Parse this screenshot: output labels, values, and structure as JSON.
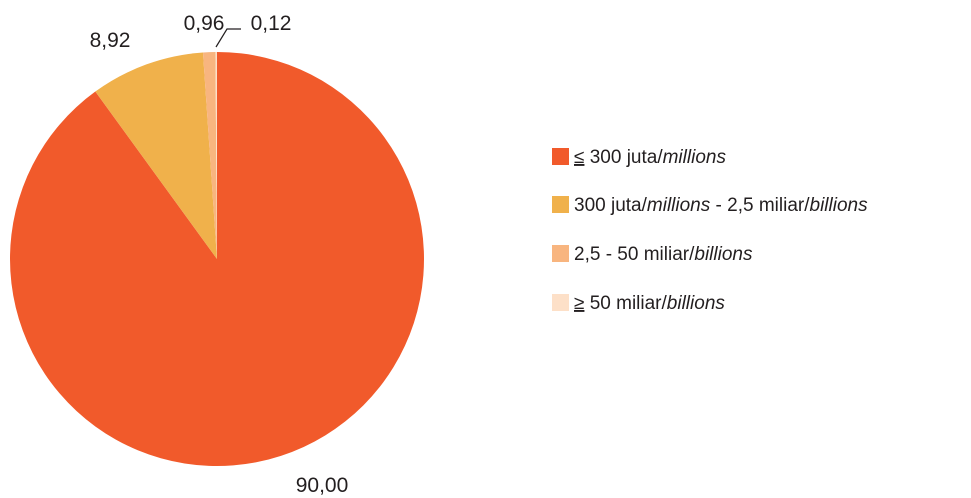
{
  "chart_data": {
    "type": "pie",
    "title": "",
    "legend_position": "right",
    "slices": [
      {
        "value": 90.0,
        "label": "90,00",
        "color": "#f15a2b",
        "legend": {
          "prefix": "≤",
          "text": " 300 juta/",
          "italic": "millions",
          "suffix": ""
        }
      },
      {
        "value": 8.92,
        "label": "8,92",
        "color": "#f0b14b",
        "legend": {
          "prefix": "",
          "text": "300 juta/",
          "italic": "millions",
          "suffix": " - 2,5 miliar/",
          "italic2": "billions"
        }
      },
      {
        "value": 0.96,
        "label": "0,96",
        "color": "#f8b57f",
        "legend": {
          "prefix": "",
          "text": "2,5 - 50 miliar/",
          "italic": "billions",
          "suffix": ""
        }
      },
      {
        "value": 0.12,
        "label": "0,12",
        "color": "#fde0c8",
        "legend": {
          "prefix": "≥",
          "text": " 50 miliar/",
          "italic": "billions",
          "suffix": ""
        }
      }
    ]
  }
}
